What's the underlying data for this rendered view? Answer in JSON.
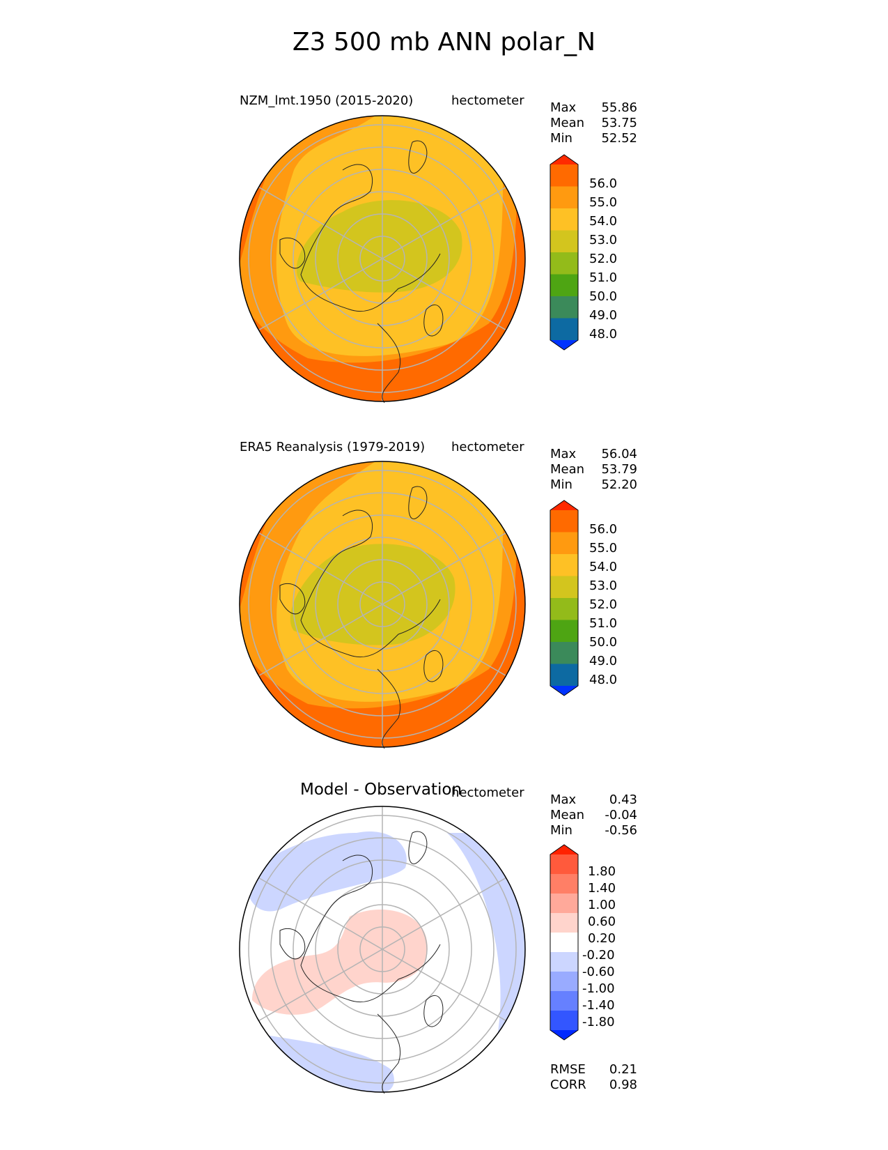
{
  "title": "Z3 500 mb ANN polar_N",
  "panels": {
    "test": {
      "title": "NZM_lmt.1950 (2015-2020)",
      "units": "hectometer",
      "stats": [
        {
          "label": "Max",
          "value": "55.86"
        },
        {
          "label": "Mean",
          "value": "53.75"
        },
        {
          "label": "Min",
          "value": "52.52"
        }
      ]
    },
    "ref": {
      "title": "ERA5 Reanalysis (1979-2019)",
      "units": "hectometer",
      "stats": [
        {
          "label": "Max",
          "value": "56.04"
        },
        {
          "label": "Mean",
          "value": "53.79"
        },
        {
          "label": "Min",
          "value": "52.20"
        }
      ]
    },
    "diff": {
      "title": "Model - Observation",
      "units": "hectometer",
      "stats": [
        {
          "label": "Max",
          "value": "0.43"
        },
        {
          "label": "Mean",
          "value": "-0.04"
        },
        {
          "label": "Min",
          "value": "-0.56"
        }
      ],
      "metrics": [
        {
          "label": "RMSE",
          "value": "0.21"
        },
        {
          "label": "CORR",
          "value": "0.98"
        }
      ]
    }
  },
  "colorbars": {
    "field": {
      "labels": [
        "56.0",
        "55.0",
        "54.0",
        "53.0",
        "52.0",
        "51.0",
        "50.0",
        "49.0",
        "48.0"
      ],
      "colors": [
        "#ff2a00",
        "#ff6a00",
        "#ff9a10",
        "#fec125",
        "#d3c51e",
        "#93bb1a",
        "#4ea513",
        "#3b8a5a",
        "#0d6aa2",
        "#0033ff"
      ]
    },
    "diff": {
      "labels": [
        "1.80",
        "1.40",
        "1.00",
        "0.60",
        "0.20",
        "-0.20",
        "-0.60",
        "-1.00",
        "-1.40",
        "-1.80"
      ],
      "colors": [
        "#ff2200",
        "#ff5a3c",
        "#ff7f66",
        "#ffa99a",
        "#ffd4cc",
        "#ffffff",
        "#ccd6ff",
        "#99abff",
        "#6680ff",
        "#3356ff",
        "#0029ff"
      ]
    }
  },
  "chart_data": [
    {
      "type": "heatmap",
      "projection": "north polar stereographic",
      "title": "NZM_lmt.1950 (2015-2020)",
      "units": "hectometer",
      "levels": [
        48.0,
        49.0,
        50.0,
        51.0,
        52.0,
        53.0,
        54.0,
        55.0,
        56.0
      ],
      "max": 55.86,
      "mean": 53.75,
      "min": 52.52
    },
    {
      "type": "heatmap",
      "projection": "north polar stereographic",
      "title": "ERA5 Reanalysis (1979-2019)",
      "units": "hectometer",
      "levels": [
        48.0,
        49.0,
        50.0,
        51.0,
        52.0,
        53.0,
        54.0,
        55.0,
        56.0
      ],
      "max": 56.04,
      "mean": 53.79,
      "min": 52.2
    },
    {
      "type": "heatmap",
      "projection": "north polar stereographic",
      "title": "Model - Observation",
      "units": "hectometer",
      "levels": [
        -1.8,
        -1.4,
        -1.0,
        -0.6,
        -0.2,
        0.2,
        0.6,
        1.0,
        1.4,
        1.8
      ],
      "max": 0.43,
      "mean": -0.04,
      "min": -0.56,
      "rmse": 0.21,
      "corr": 0.98
    }
  ]
}
